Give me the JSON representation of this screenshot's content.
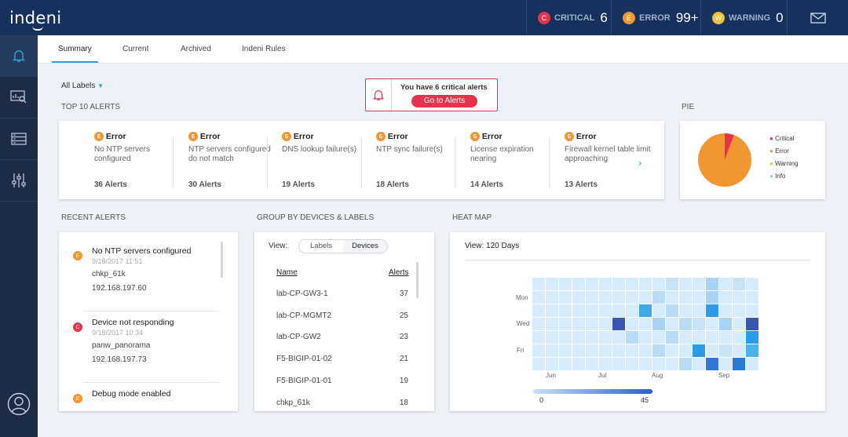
{
  "app": {
    "logo": "indeni"
  },
  "header": {
    "critical": {
      "icon": "C",
      "label": "CRITICAL",
      "count": "6",
      "color": "#e5334b"
    },
    "error": {
      "icon": "E",
      "label": "ERROR",
      "count": "99+",
      "color": "#f29632"
    },
    "warning": {
      "icon": "W",
      "label": "WARNING",
      "count": "0",
      "color": "#f1c232"
    }
  },
  "tabs": [
    {
      "label": "Summary"
    },
    {
      "label": "Current"
    },
    {
      "label": "Archived"
    },
    {
      "label": "Indeni Rules"
    }
  ],
  "filter": {
    "label": "All Labels"
  },
  "banner": {
    "text": "You have 6 critical alerts",
    "button": "Go to Alerts"
  },
  "sections": {
    "top10": "TOP 10 ALERTS",
    "pie": "PIE",
    "recent": "RECENT ALERTS",
    "group": "GROUP BY DEVICES & LABELS",
    "heatmap": "HEAT MAP"
  },
  "top_alerts": [
    {
      "icon": "E",
      "type": "Error",
      "desc": "No NTP servers configured",
      "count": "36 Alerts"
    },
    {
      "icon": "E",
      "type": "Error",
      "desc": "NTP servers configured do not match",
      "count": "30 Alerts"
    },
    {
      "icon": "E",
      "type": "Error",
      "desc": "DNS lookup failure(s)",
      "count": "19 Alerts"
    },
    {
      "icon": "E",
      "type": "Error",
      "desc": "NTP sync failure(s)",
      "count": "18 Alerts"
    },
    {
      "icon": "E",
      "type": "Error",
      "desc": "License expiration nearing",
      "count": "14 Alerts"
    },
    {
      "icon": "E",
      "type": "Error",
      "desc": "Firewall kernel table limit approaching",
      "count": "13 Alerts"
    }
  ],
  "pie": {
    "legend": [
      {
        "label": "Critical",
        "color": "#e5334b"
      },
      {
        "label": "Error",
        "color": "#f29632"
      },
      {
        "label": "Warning",
        "color": "#f1c232"
      },
      {
        "label": "Info",
        "color": "#8ec8f0"
      }
    ],
    "slices": [
      {
        "label": "Critical",
        "value": 6
      },
      {
        "label": "Error",
        "value": 99
      }
    ]
  },
  "recent": [
    {
      "icon": "E",
      "color": "#f29632",
      "title": "No NTP servers configured",
      "time": "9/18/2017 11:51",
      "device": "chkp_61k",
      "ip": "192.168.197.60"
    },
    {
      "icon": "C",
      "color": "#e5334b",
      "title": "Device not responding",
      "time": "9/18/2017 10:34",
      "device": "panw_panorama",
      "ip": "192.168.197.73"
    },
    {
      "icon": "E",
      "color": "#f29632",
      "title": "Debug mode enabled",
      "time": "",
      "device": "",
      "ip": ""
    }
  ],
  "group": {
    "view_label": "View:",
    "toggle": [
      "Labels",
      "Devices"
    ],
    "col_name": "Name",
    "col_alerts": "Alerts",
    "rows": [
      {
        "name": "lab-CP-GW3-1",
        "alerts": "37"
      },
      {
        "name": "lab-CP-MGMT2",
        "alerts": "25"
      },
      {
        "name": "lab-CP-GW2",
        "alerts": "23"
      },
      {
        "name": "F5-BIGIP-01-02",
        "alerts": "21"
      },
      {
        "name": "F5-BIGIP-01-01",
        "alerts": "19"
      },
      {
        "name": "chkp_61k",
        "alerts": "18"
      }
    ]
  },
  "heatmap": {
    "view": "View: 120 Days",
    "days": [
      "Mon",
      "Wed",
      "Fri"
    ],
    "months": [
      "Jun",
      "Jul",
      "Aug",
      "Sep"
    ],
    "scale_min": "0",
    "scale_max": "45"
  }
}
